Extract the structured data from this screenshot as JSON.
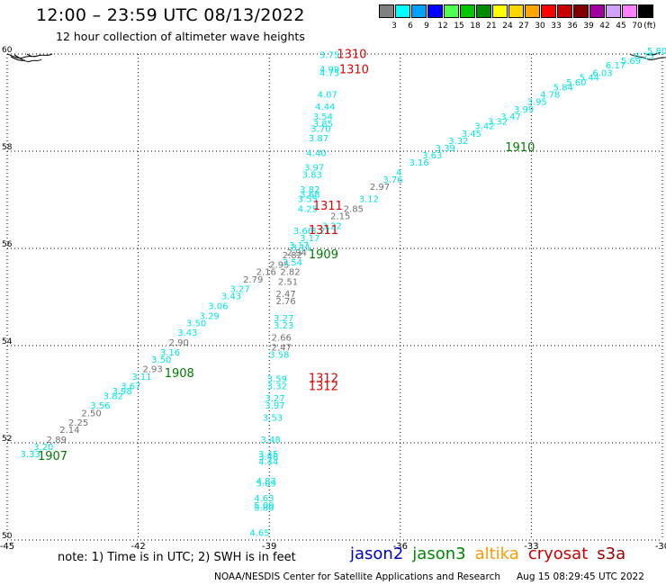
{
  "header": {
    "title": "12:00 – 23:59 UTC 08/13/2022",
    "subtitle": "12 hour collection of altimeter wave heights"
  },
  "legend": {
    "unit": "(ft)",
    "items": [
      {
        "label": "3",
        "color": "#808080"
      },
      {
        "label": "6",
        "color": "#00ffff"
      },
      {
        "label": "9",
        "color": "#00a0ff"
      },
      {
        "label": "12",
        "color": "#0000ff"
      },
      {
        "label": "15",
        "color": "#50ff50"
      },
      {
        "label": "18",
        "color": "#00c800"
      },
      {
        "label": "21",
        "color": "#008c00"
      },
      {
        "label": "24",
        "color": "#ffff00"
      },
      {
        "label": "27",
        "color": "#ffd700"
      },
      {
        "label": "30",
        "color": "#ffa500"
      },
      {
        "label": "33",
        "color": "#ff0000"
      },
      {
        "label": "36",
        "color": "#c80000"
      },
      {
        "label": "39",
        "color": "#800000"
      },
      {
        "label": "42",
        "color": "#a000a0"
      },
      {
        "label": "45",
        "color": "#d2a0ff"
      },
      {
        "label": "70",
        "color": "#ff80ff"
      },
      {
        "label": "",
        "color": "#000000"
      }
    ]
  },
  "map": {
    "lon_min": -45,
    "lon_max": -30,
    "lat_min": 50,
    "lat_max": 60,
    "lon_ticks": [
      "-45",
      "-42",
      "-39",
      "-36",
      "-33",
      "-30"
    ],
    "lat_ticks": [
      "60",
      "58",
      "56",
      "54",
      "52",
      "50"
    ],
    "colors": {
      "cyan": "#00e5e5",
      "gray": "#707070",
      "red": "#e00000",
      "green": "#007a00"
    },
    "tracks": [
      {
        "name": "track-a",
        "points": [
          {
            "lon": -44.7,
            "lat": 51.7,
            "v": "3.33",
            "c": "cyan"
          },
          {
            "lon": -44.4,
            "lat": 51.85,
            "v": "3.20",
            "c": "cyan"
          },
          {
            "lon": -44.1,
            "lat": 52.0,
            "v": "2.89",
            "c": "gray"
          },
          {
            "lon": -43.8,
            "lat": 52.2,
            "v": "2.14",
            "c": "gray"
          },
          {
            "lon": -43.6,
            "lat": 52.35,
            "v": "2.25",
            "c": "gray"
          },
          {
            "lon": -43.3,
            "lat": 52.55,
            "v": "2.50",
            "c": "gray"
          },
          {
            "lon": -43.1,
            "lat": 52.7,
            "v": "3.56",
            "c": "cyan"
          },
          {
            "lon": -42.8,
            "lat": 52.9,
            "v": "3.82",
            "c": "cyan"
          },
          {
            "lon": -42.6,
            "lat": 53.0,
            "v": "3.98",
            "c": "cyan"
          },
          {
            "lon": -42.4,
            "lat": 53.1,
            "v": "3.67",
            "c": "cyan"
          },
          {
            "lon": -42.15,
            "lat": 53.3,
            "v": "3.11",
            "c": "cyan"
          },
          {
            "lon": -41.9,
            "lat": 53.45,
            "v": "2.93",
            "c": "gray"
          },
          {
            "lon": -41.7,
            "lat": 53.65,
            "v": "3.50",
            "c": "cyan"
          },
          {
            "lon": -41.5,
            "lat": 53.8,
            "v": "3.16",
            "c": "cyan"
          },
          {
            "lon": -41.3,
            "lat": 54.0,
            "v": "2.90",
            "c": "gray"
          },
          {
            "lon": -41.1,
            "lat": 54.2,
            "v": "3.43",
            "c": "cyan"
          },
          {
            "lon": -40.9,
            "lat": 54.4,
            "v": "3.50",
            "c": "cyan"
          },
          {
            "lon": -40.6,
            "lat": 54.55,
            "v": "3.29",
            "c": "cyan"
          },
          {
            "lon": -40.4,
            "lat": 54.75,
            "v": "3.06",
            "c": "cyan"
          },
          {
            "lon": -40.1,
            "lat": 54.95,
            "v": "3.43",
            "c": "cyan"
          },
          {
            "lon": -39.9,
            "lat": 55.1,
            "v": "3.27",
            "c": "cyan"
          },
          {
            "lon": -39.6,
            "lat": 55.3,
            "v": "2.79",
            "c": "gray"
          },
          {
            "lon": -39.3,
            "lat": 55.45,
            "v": "2.16",
            "c": "gray"
          },
          {
            "lon": -39.0,
            "lat": 55.6,
            "v": "2.95",
            "c": "gray"
          },
          {
            "lon": -38.7,
            "lat": 55.8,
            "v": "2.82",
            "c": "gray"
          },
          {
            "lon": -38.5,
            "lat": 55.95,
            "v": "3.11",
            "c": "cyan"
          },
          {
            "lon": -38.3,
            "lat": 56.15,
            "v": "3.17",
            "c": "cyan"
          },
          {
            "lon": -38.05,
            "lat": 56.3,
            "v": "3.21",
            "c": "cyan"
          },
          {
            "lon": -37.8,
            "lat": 56.4,
            "v": "3.22",
            "c": "cyan"
          },
          {
            "lon": -37.6,
            "lat": 56.6,
            "v": "2.15",
            "c": "gray"
          },
          {
            "lon": -37.3,
            "lat": 56.75,
            "v": "2.85",
            "c": "gray"
          },
          {
            "lon": -36.95,
            "lat": 56.95,
            "v": "3.12",
            "c": "cyan"
          },
          {
            "lon": -36.7,
            "lat": 57.2,
            "v": "2.97",
            "c": "gray"
          },
          {
            "lon": -36.4,
            "lat": 57.35,
            "v": "3.76",
            "c": "cyan"
          },
          {
            "lon": -36.1,
            "lat": 57.5,
            "v": "4",
            "c": "cyan"
          },
          {
            "lon": -35.8,
            "lat": 57.7,
            "v": "3.16",
            "c": "cyan"
          },
          {
            "lon": -35.5,
            "lat": 57.85,
            "v": "3.63",
            "c": "cyan"
          },
          {
            "lon": -35.2,
            "lat": 58.0,
            "v": "3.39",
            "c": "cyan"
          },
          {
            "lon": -34.9,
            "lat": 58.15,
            "v": "3.32",
            "c": "cyan"
          },
          {
            "lon": -34.6,
            "lat": 58.3,
            "v": "3.45",
            "c": "cyan"
          },
          {
            "lon": -34.3,
            "lat": 58.45,
            "v": "3.42",
            "c": "cyan"
          },
          {
            "lon": -34.0,
            "lat": 58.55,
            "v": "3.32",
            "c": "cyan"
          },
          {
            "lon": -33.7,
            "lat": 58.65,
            "v": "3.47",
            "c": "cyan"
          },
          {
            "lon": -33.4,
            "lat": 58.8,
            "v": "3.99",
            "c": "cyan"
          },
          {
            "lon": -33.1,
            "lat": 58.95,
            "v": "3.95",
            "c": "cyan"
          },
          {
            "lon": -32.8,
            "lat": 59.1,
            "v": "4.78",
            "c": "cyan"
          },
          {
            "lon": -32.5,
            "lat": 59.25,
            "v": "5.84",
            "c": "cyan"
          },
          {
            "lon": -32.2,
            "lat": 59.35,
            "v": "5.60",
            "c": "cyan"
          },
          {
            "lon": -31.9,
            "lat": 59.45,
            "v": "5.44",
            "c": "cyan"
          },
          {
            "lon": -31.6,
            "lat": 59.55,
            "v": "6.03",
            "c": "cyan"
          },
          {
            "lon": -31.3,
            "lat": 59.7,
            "v": "6.17",
            "c": "cyan"
          },
          {
            "lon": -30.95,
            "lat": 59.8,
            "v": "5.69",
            "c": "cyan"
          },
          {
            "lon": -30.65,
            "lat": 59.9,
            "v": "6.25",
            "c": "cyan"
          },
          {
            "lon": -30.35,
            "lat": 60.0,
            "v": "5.80",
            "c": "cyan"
          }
        ]
      },
      {
        "name": "track-b",
        "points": [
          {
            "lon": -37.85,
            "lat": 59.92,
            "v": "3.75",
            "c": "cyan"
          },
          {
            "lon": -37.85,
            "lat": 59.62,
            "v": "4.99",
            "c": "cyan"
          },
          {
            "lon": -37.85,
            "lat": 59.55,
            "v": "4.75",
            "c": "cyan"
          },
          {
            "lon": -37.9,
            "lat": 59.1,
            "v": "4.07",
            "c": "cyan"
          },
          {
            "lon": -37.95,
            "lat": 58.85,
            "v": "4.44",
            "c": "cyan"
          },
          {
            "lon": -38.0,
            "lat": 58.65,
            "v": "3.54",
            "c": "cyan"
          },
          {
            "lon": -38.0,
            "lat": 58.5,
            "v": "3.85",
            "c": "cyan"
          },
          {
            "lon": -38.05,
            "lat": 58.4,
            "v": "3.70",
            "c": "cyan"
          },
          {
            "lon": -38.1,
            "lat": 58.2,
            "v": "3.87",
            "c": "cyan"
          },
          {
            "lon": -38.15,
            "lat": 57.9,
            "v": "4.40",
            "c": "cyan"
          },
          {
            "lon": -38.2,
            "lat": 57.6,
            "v": "3.97",
            "c": "cyan"
          },
          {
            "lon": -38.25,
            "lat": 57.45,
            "v": "3.83",
            "c": "cyan"
          },
          {
            "lon": -38.3,
            "lat": 57.15,
            "v": "3.82",
            "c": "cyan"
          },
          {
            "lon": -38.3,
            "lat": 57.05,
            "v": "3.68",
            "c": "cyan"
          },
          {
            "lon": -38.35,
            "lat": 56.95,
            "v": "3.55",
            "c": "cyan"
          },
          {
            "lon": -38.35,
            "lat": 56.75,
            "v": "4.25",
            "c": "cyan"
          },
          {
            "lon": -38.45,
            "lat": 56.3,
            "v": "3.66",
            "c": "cyan"
          },
          {
            "lon": -38.55,
            "lat": 56.0,
            "v": "3.17",
            "c": "cyan"
          },
          {
            "lon": -38.6,
            "lat": 55.85,
            "v": "2.94",
            "c": "gray"
          },
          {
            "lon": -38.7,
            "lat": 55.65,
            "v": "3.54",
            "c": "cyan"
          },
          {
            "lon": -38.75,
            "lat": 55.45,
            "v": "2.82",
            "c": "gray"
          },
          {
            "lon": -38.8,
            "lat": 55.25,
            "v": "2.51",
            "c": "gray"
          },
          {
            "lon": -38.85,
            "lat": 55.0,
            "v": "2.47",
            "c": "gray"
          },
          {
            "lon": -38.85,
            "lat": 54.85,
            "v": "2.76",
            "c": "gray"
          },
          {
            "lon": -38.9,
            "lat": 54.5,
            "v": "3.27",
            "c": "cyan"
          },
          {
            "lon": -38.9,
            "lat": 54.35,
            "v": "3.23",
            "c": "cyan"
          },
          {
            "lon": -38.95,
            "lat": 54.1,
            "v": "2.66",
            "c": "gray"
          },
          {
            "lon": -38.95,
            "lat": 53.9,
            "v": "2.47",
            "c": "gray"
          },
          {
            "lon": -39.0,
            "lat": 53.75,
            "v": "3.58",
            "c": "cyan"
          },
          {
            "lon": -39.05,
            "lat": 53.25,
            "v": "3.59",
            "c": "cyan"
          },
          {
            "lon": -39.05,
            "lat": 53.1,
            "v": "3.32",
            "c": "cyan"
          },
          {
            "lon": -39.1,
            "lat": 52.85,
            "v": "3.27",
            "c": "cyan"
          },
          {
            "lon": -39.1,
            "lat": 52.7,
            "v": "3.97",
            "c": "cyan"
          },
          {
            "lon": -39.15,
            "lat": 52.45,
            "v": "3.53",
            "c": "cyan"
          },
          {
            "lon": -39.2,
            "lat": 52.0,
            "v": "3.48",
            "c": "cyan"
          },
          {
            "lon": -39.25,
            "lat": 51.7,
            "v": "3.45",
            "c": "cyan"
          },
          {
            "lon": -39.25,
            "lat": 51.65,
            "v": "3.48",
            "c": "cyan"
          },
          {
            "lon": -39.25,
            "lat": 51.55,
            "v": "4.44",
            "c": "cyan"
          },
          {
            "lon": -39.3,
            "lat": 51.15,
            "v": "4.87",
            "c": "cyan"
          },
          {
            "lon": -39.3,
            "lat": 51.1,
            "v": "5.09",
            "c": "cyan"
          },
          {
            "lon": -39.35,
            "lat": 50.8,
            "v": "4.63",
            "c": "cyan"
          },
          {
            "lon": -39.35,
            "lat": 50.65,
            "v": "5.09",
            "c": "cyan"
          },
          {
            "lon": -39.35,
            "lat": 50.6,
            "v": "5.80",
            "c": "cyan"
          },
          {
            "lon": -39.45,
            "lat": 50.08,
            "v": "4.65",
            "c": "cyan"
          }
        ]
      }
    ],
    "time_labels": [
      {
        "lon": -44.3,
        "lat": 51.65,
        "text": "1907",
        "c": "green"
      },
      {
        "lon": -41.4,
        "lat": 53.35,
        "text": "1908",
        "c": "green"
      },
      {
        "lon": -38.1,
        "lat": 55.8,
        "text": "1909",
        "c": "green"
      },
      {
        "lon": -33.6,
        "lat": 58.0,
        "text": "1910",
        "c": "green"
      },
      {
        "lon": -37.45,
        "lat": 59.92,
        "text": "1310",
        "c": "red"
      },
      {
        "lon": -37.4,
        "lat": 59.6,
        "text": "1310",
        "c": "red"
      },
      {
        "lon": -38.0,
        "lat": 56.8,
        "text": "1311",
        "c": "red"
      },
      {
        "lon": -38.1,
        "lat": 56.3,
        "text": "1311",
        "c": "red"
      },
      {
        "lon": -38.1,
        "lat": 53.25,
        "text": "1312",
        "c": "red"
      },
      {
        "lon": -38.1,
        "lat": 53.08,
        "text": "1312",
        "c": "red"
      }
    ]
  },
  "footer": {
    "note": "note:  1) Time is in UTC;  2) SWH is in feet",
    "satellites": [
      {
        "label": "jason2",
        "color": "#0000cc"
      },
      {
        "label": "jason3",
        "color": "#008800"
      },
      {
        "label": "altika",
        "color": "#ff9900"
      },
      {
        "label": "cryosat",
        "color": "#cc0000"
      },
      {
        "label": "s3a",
        "color": "#990000"
      }
    ],
    "credit": "NOAA/NESDIS Center for Satellite Applications and Research",
    "timestamp": "Aug 15 08:29:45 UTC 2022"
  }
}
